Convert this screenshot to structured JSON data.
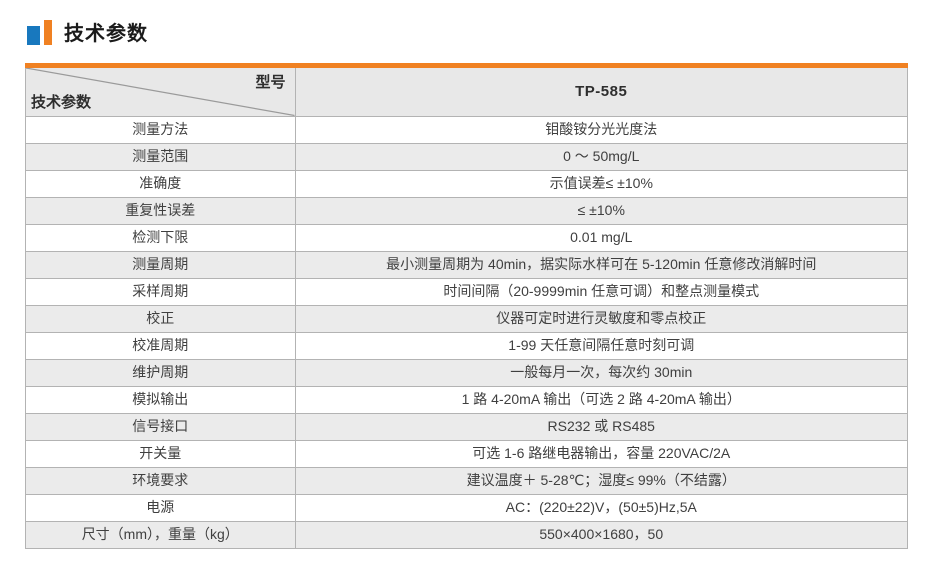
{
  "page": {
    "section_title": "技术参数"
  },
  "colors": {
    "accent_orange": "#F08122",
    "accent_blue": "#1878BE",
    "header_bg": "#E8E8E8",
    "zebra_bg": "#EBEBEB",
    "border": "#B3B3B3",
    "text": "#3F3F3F"
  },
  "table": {
    "corner": {
      "top_right_label": "型号",
      "bottom_left_label": "技术参数"
    },
    "model_header": "TP-585",
    "rows": [
      {
        "label": "测量方法",
        "value": "钼酸铵分光光度法"
      },
      {
        "label": "测量范围",
        "value": "0 ～ 50mg/L"
      },
      {
        "label": "准确度",
        "value": "示值误差≤ ±10%"
      },
      {
        "label": "重复性误差",
        "value": "≤ ±10%"
      },
      {
        "label": "检测下限",
        "value": "0.01 mg/L"
      },
      {
        "label": "测量周期",
        "value": "最小测量周期为 40min，据实际水样可在 5-120min 任意修改消解时间"
      },
      {
        "label": "采样周期",
        "value": "时间间隔（20-9999min 任意可调）和整点测量模式"
      },
      {
        "label": "校正",
        "value": "仪器可定时进行灵敏度和零点校正"
      },
      {
        "label": "校准周期",
        "value": "1-99 天任意间隔任意时刻可调"
      },
      {
        "label": "维护周期",
        "value": "一般每月一次，每次约 30min"
      },
      {
        "label": "模拟输出",
        "value": "1 路 4-20mA 输出（可选 2 路 4-20mA 输出）"
      },
      {
        "label": "信号接口",
        "value": "RS232 或 RS485"
      },
      {
        "label": "开关量",
        "value": "可选 1-6 路继电器输出，容量 220VAC/2A"
      },
      {
        "label": "环境要求",
        "value": "建议温度＋ 5-28℃；湿度≤ 99%（不结露）"
      },
      {
        "label": "电源",
        "value": "AC：(220±22)V，(50±5)Hz,5A"
      },
      {
        "label": "尺寸（mm），重量（kg）",
        "value": "550×400×1680，50"
      }
    ]
  }
}
